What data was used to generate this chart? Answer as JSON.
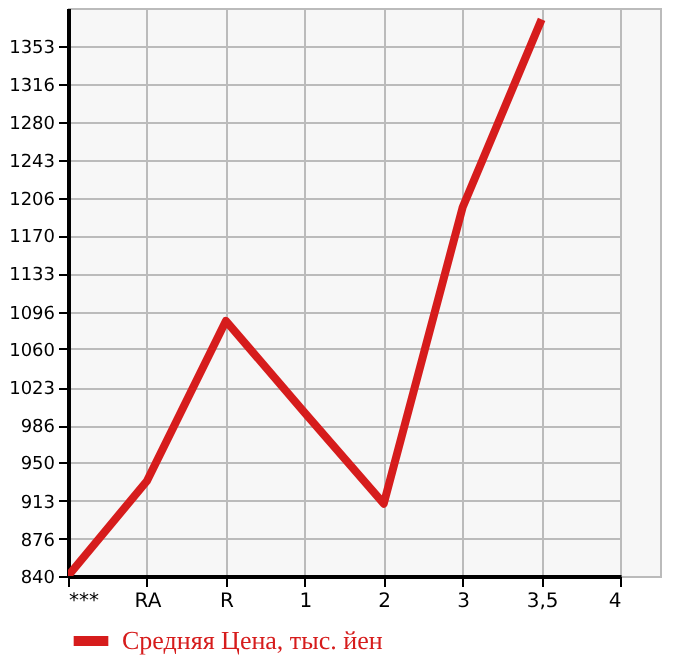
{
  "chart_data": {
    "type": "line",
    "categories": [
      "***",
      "RA",
      "R",
      "1",
      "2",
      "3",
      "3,5",
      "4"
    ],
    "series": [
      {
        "name": "Средняя Цена, тыс. йен",
        "color": "#d61c1c",
        "values": [
          840,
          932,
          1087,
          998,
          910,
          1197,
          1379,
          null
        ]
      }
    ],
    "ylim": [
      840,
      1390
    ],
    "yticks": [
      840,
      876,
      913,
      950,
      986,
      1023,
      1060,
      1096,
      1133,
      1170,
      1206,
      1243,
      1280,
      1316,
      1353
    ],
    "grid": true,
    "legend": "bottom left",
    "marker": "none",
    "line_style": "solid"
  }
}
